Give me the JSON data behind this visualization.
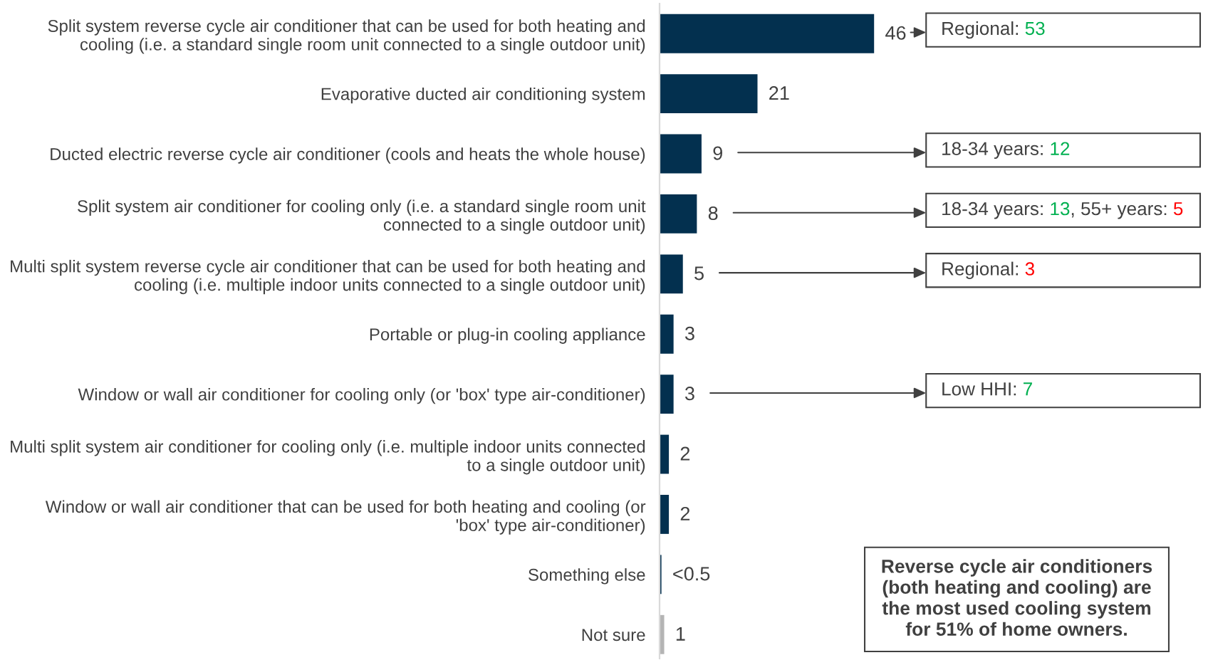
{
  "chart_data": {
    "type": "bar",
    "orientation": "horizontal",
    "categories": [
      "Split system reverse cycle air conditioner that can be used for both heating and\ncooling (i.e. a standard single room unit connected to a single outdoor unit)",
      "Evaporative ducted air conditioning system",
      "Ducted electric reverse cycle air conditioner (cools and heats the whole house)",
      "Split system air conditioner for cooling only (i.e. a standard single room unit\nconnected to a single outdoor unit)",
      "Multi split system reverse cycle air conditioner that can be used for both heating and\ncooling (i.e. multiple indoor units connected to a single outdoor unit)",
      "Portable or plug-in cooling appliance",
      "Window or wall air conditioner for cooling only (or 'box' type air-conditioner)",
      "Multi split system air conditioner for cooling only (i.e. multiple indoor units connected\nto a single outdoor unit)",
      "Window or wall air conditioner that can be used for both heating and cooling (or\n'box' type air-conditioner)",
      "Something else",
      "Not sure"
    ],
    "values": [
      46,
      21,
      9,
      8,
      5,
      3,
      3,
      2,
      2,
      0.4,
      1
    ],
    "colors": [
      "#03304f",
      "#03304f",
      "#03304f",
      "#03304f",
      "#03304f",
      "#03304f",
      "#03304f",
      "#03304f",
      "#03304f",
      "#03304f",
      "#b4b4b4"
    ],
    "value_labels": [
      "46",
      "21",
      "9",
      "8",
      "5",
      "3",
      "3",
      "2",
      "2",
      "<0.5",
      "1"
    ],
    "tick_labels": "y",
    "annotations": [
      "Regional: 53",
      "18-34 years: 12",
      "18-34 years: 13, 55+ years: 5",
      "Regional: 3",
      "Low HHI: 7",
      "Reverse cycle air conditioners\n(both heating and cooling) are\nthe most used cooling system\nfor 51% of home owners."
    ]
  }
}
